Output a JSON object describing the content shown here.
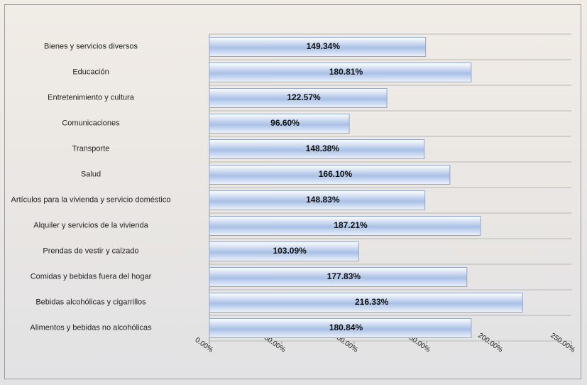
{
  "chart_data": {
    "type": "bar",
    "orientation": "horizontal",
    "categories": [
      "Bienes y servicios diversos",
      "Educación",
      "Entretenimiento y cultura",
      "Comunicaciones",
      "Transporte",
      "Salud",
      "Artículos para la vivienda y servicio doméstico",
      "Alquiler y servicios de la vivienda",
      "Prendas de vestir y calzado",
      "Comidas y bebidas fuera del hogar",
      "Bebidas alcohólicas y cigarrillos",
      "Alimentos y bebidas no alcohólicas"
    ],
    "values": [
      149.34,
      180.81,
      122.57,
      96.6,
      148.38,
      166.1,
      148.83,
      187.21,
      103.09,
      177.83,
      216.33,
      180.84
    ],
    "value_labels": [
      "149.34%",
      "180.81%",
      "122.57%",
      "96.60%",
      "148.38%",
      "166.10%",
      "148.83%",
      "187.21%",
      "103.09%",
      "177.83%",
      "216.33%",
      "180.84%"
    ],
    "color": "#a9c0e6",
    "xlim": [
      0,
      250
    ],
    "xticks": [
      {
        "value": 0,
        "label": "0.00%"
      },
      {
        "value": 50,
        "label": "50.00%"
      },
      {
        "value": 100,
        "label": "100.00%"
      },
      {
        "value": 150,
        "label": "150.00%"
      },
      {
        "value": 200,
        "label": "200.00%"
      },
      {
        "value": 250,
        "label": "250.00%"
      }
    ]
  }
}
